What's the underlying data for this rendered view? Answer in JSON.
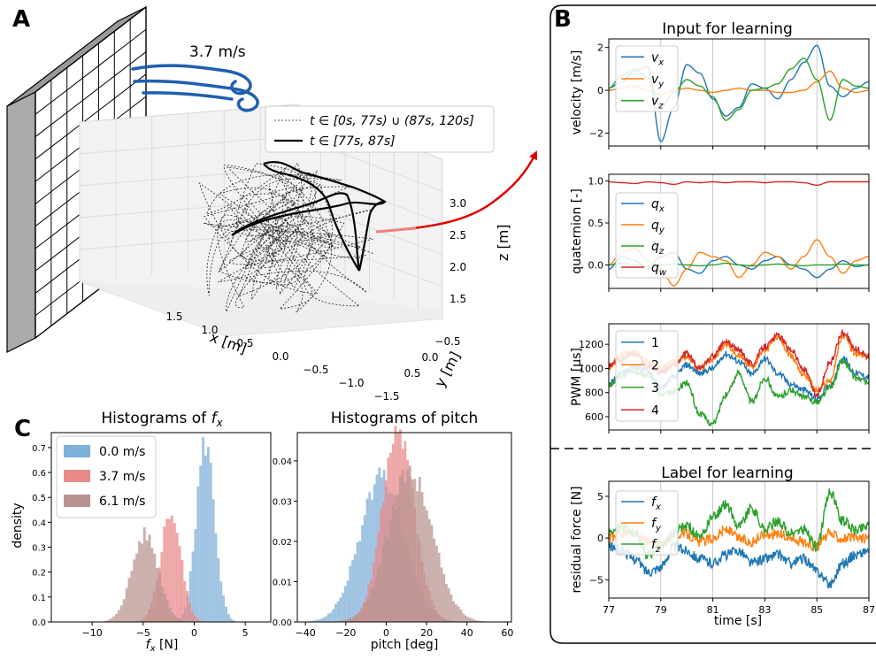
{
  "panel_letters": {
    "a": "A",
    "b": "B",
    "c": "C"
  },
  "wind": {
    "speed_label": "3.7 m/s"
  },
  "colors": {
    "blue": "#1f77b4",
    "orange": "#ff7f0e",
    "green": "#2ca02c",
    "red": "#d62728",
    "wind": "#1f5fb0",
    "hist_blue": "#7fb0d8",
    "hist_red": "#e88a8a",
    "hist_brown": "#b89490"
  },
  "chart_data": [
    {
      "id": "trajectory3d",
      "type": "line",
      "legend": [
        {
          "label": "t ∈ [0s, 77s) ∪ (87s, 120s]",
          "style": "dotted"
        },
        {
          "label": "t ∈ [77s, 87s]",
          "style": "solid"
        }
      ],
      "xlabel": "x [m]",
      "ylabel": "y [m]",
      "zlabel": "z [m]",
      "xticks": [
        "1.5",
        "1.0",
        "0.5",
        "0.0",
        "−0.5",
        "−1.0",
        "−1.5"
      ],
      "yticks": [
        "−0.5",
        "0.0",
        "0.5"
      ],
      "zticks": [
        "3.0",
        "2.5",
        "2.0",
        "1.5"
      ]
    },
    {
      "id": "velocity",
      "type": "line",
      "title": "Input for learning",
      "ylabel": "velocity [m/s]",
      "ylim": [
        -2.6,
        2.4
      ],
      "yticks": [
        "2",
        "0",
        "−2"
      ],
      "x": [
        77,
        77.5,
        78,
        78.5,
        79,
        79.5,
        80,
        80.5,
        81,
        81.5,
        82,
        82.5,
        83,
        83.5,
        84,
        84.5,
        85,
        85.5,
        86,
        86.5,
        87
      ],
      "series": [
        {
          "name": "v",
          "sub": "x",
          "values": [
            0.1,
            0.4,
            0.9,
            1.1,
            -2.4,
            -0.8,
            1.2,
            0.8,
            -0.4,
            -1.2,
            -0.8,
            0.3,
            0.1,
            -0.4,
            0.5,
            1.3,
            2.1,
            0.2,
            -0.3,
            0.1,
            0.4
          ]
        },
        {
          "name": "v",
          "sub": "y",
          "values": [
            0.0,
            0.1,
            0.2,
            0.0,
            -0.2,
            0.0,
            0.1,
            0.0,
            -0.1,
            0.0,
            0.1,
            0.0,
            0.0,
            -0.1,
            -0.1,
            0.0,
            0.4,
            0.9,
            0.1,
            -0.1,
            0.0
          ]
        },
        {
          "name": "v",
          "sub": "z",
          "values": [
            0.1,
            0.7,
            1.0,
            0.6,
            -0.8,
            -0.1,
            0.5,
            0.2,
            -0.3,
            -1.4,
            -0.9,
            0.0,
            0.1,
            0.3,
            1.0,
            1.5,
            0.5,
            -1.4,
            0.5,
            0.2,
            0.1
          ]
        }
      ]
    },
    {
      "id": "quaternion",
      "type": "line",
      "ylabel": "quaternion [-]",
      "ylim": [
        -0.28,
        1.08
      ],
      "yticks": [
        "1.0",
        "0.5",
        "0.0"
      ],
      "x": [
        77,
        77.5,
        78,
        78.5,
        79,
        79.5,
        80,
        80.5,
        81,
        81.5,
        82,
        82.5,
        83,
        83.5,
        84,
        84.5,
        85,
        85.5,
        86,
        86.5,
        87
      ],
      "series": [
        {
          "name": "q",
          "sub": "x",
          "values": [
            -0.05,
            0.1,
            0.05,
            -0.05,
            0.1,
            0.15,
            -0.05,
            -0.1,
            0.05,
            0.1,
            0.0,
            -0.05,
            0.05,
            0.1,
            0.0,
            -0.05,
            -0.15,
            -0.05,
            0.05,
            -0.02,
            0.0
          ]
        },
        {
          "name": "q",
          "sub": "y",
          "values": [
            0.0,
            0.15,
            0.2,
            0.05,
            -0.05,
            -0.25,
            -0.05,
            0.15,
            0.1,
            0.05,
            -0.15,
            0.0,
            0.15,
            0.1,
            -0.05,
            0.1,
            0.3,
            0.1,
            -0.1,
            0.05,
            0.1
          ]
        },
        {
          "name": "q",
          "sub": "z",
          "values": [
            0.0,
            0.02,
            0.0,
            -0.02,
            0.0,
            0.01,
            0.0,
            -0.01,
            0.0,
            0.02,
            0.0,
            -0.01,
            0.0,
            0.01,
            0.0,
            -0.01,
            0.0,
            0.0,
            0.01,
            0.0,
            0.0
          ]
        },
        {
          "name": "q",
          "sub": "w",
          "values": [
            0.99,
            0.98,
            0.97,
            0.99,
            0.98,
            0.96,
            0.99,
            0.98,
            0.99,
            0.98,
            0.99,
            0.99,
            0.98,
            0.99,
            0.99,
            0.98,
            0.95,
            0.99,
            0.99,
            0.99,
            0.99
          ]
        }
      ]
    },
    {
      "id": "pwm",
      "type": "line",
      "ylabel": "PWM [μs]",
      "ylim": [
        490,
        1370
      ],
      "yticks": [
        "1200",
        "1000",
        "800",
        "600"
      ],
      "x": [
        77,
        77.5,
        78,
        78.5,
        79,
        79.5,
        80,
        80.5,
        81,
        81.5,
        82,
        82.5,
        83,
        83.5,
        84,
        84.5,
        85,
        85.5,
        86,
        86.5,
        87
      ],
      "series": [
        {
          "name": "1",
          "values": [
            880,
            960,
            1020,
            980,
            840,
            930,
            1030,
            960,
            1000,
            1120,
            1060,
            950,
            1080,
            960,
            870,
            820,
            750,
            860,
            1080,
            960,
            930
          ]
        },
        {
          "name": "2",
          "values": [
            1000,
            1120,
            1130,
            1050,
            1000,
            1060,
            1100,
            1000,
            1080,
            1200,
            1100,
            1020,
            1150,
            1260,
            1100,
            950,
            820,
            900,
            1270,
            1120,
            1090
          ]
        },
        {
          "name": "3",
          "values": [
            870,
            940,
            980,
            940,
            780,
            800,
            880,
            620,
            540,
            780,
            960,
            720,
            920,
            760,
            820,
            760,
            720,
            840,
            1060,
            920,
            880
          ]
        },
        {
          "name": "4",
          "values": [
            1020,
            1080,
            1120,
            1020,
            970,
            1030,
            1120,
            1000,
            1100,
            1220,
            1150,
            1040,
            1180,
            1270,
            1160,
            990,
            780,
            1050,
            1300,
            1160,
            1100
          ]
        }
      ]
    },
    {
      "id": "residual",
      "type": "line",
      "title": "Label for learning",
      "ylabel": "residual force [N]",
      "xlabel": "time [s]",
      "ylim": [
        -7.2,
        6.8
      ],
      "yticks": [
        "5",
        "0",
        "−5"
      ],
      "xticks": [
        "77",
        "79",
        "81",
        "83",
        "85",
        "87"
      ],
      "x": [
        77,
        77.5,
        78,
        78.5,
        79,
        79.5,
        80,
        80.5,
        81,
        81.5,
        82,
        82.5,
        83,
        83.5,
        84,
        84.5,
        85,
        85.5,
        86,
        86.5,
        87
      ],
      "series": [
        {
          "name": "f",
          "sub": "x",
          "values": [
            -1.0,
            -1.5,
            -2.5,
            -4.0,
            -3.5,
            -1.0,
            -1.5,
            -2.5,
            -3.0,
            -2.0,
            -1.5,
            -3.0,
            -2.5,
            -2.0,
            -3.0,
            -2.5,
            -4.0,
            -5.5,
            -3.0,
            -2.0,
            -1.5
          ]
        },
        {
          "name": "f",
          "sub": "y",
          "values": [
            0.0,
            0.5,
            0.5,
            -0.5,
            -1.0,
            0.5,
            0.5,
            -0.5,
            0.0,
            1.0,
            0.0,
            -0.5,
            0.5,
            0.5,
            0.0,
            -0.5,
            -1.0,
            0.5,
            0.0,
            0.0,
            0.0
          ]
        },
        {
          "name": "f",
          "sub": "z",
          "values": [
            0.5,
            1.5,
            0.5,
            -2.0,
            -1.0,
            0.5,
            1.5,
            0.0,
            2.5,
            4.0,
            1.5,
            3.5,
            1.0,
            2.0,
            0.5,
            1.0,
            -1.0,
            5.5,
            2.0,
            1.0,
            1.5
          ]
        }
      ]
    },
    {
      "id": "hist_fx",
      "type": "bar",
      "title": "Histograms of f_x",
      "xlabel": "f_x [N]",
      "ylabel": "density",
      "xlim": [
        -14,
        7.5
      ],
      "ylim": [
        0,
        0.76
      ],
      "xticks": [
        -10,
        -5,
        0,
        5
      ],
      "yticks": [
        0.0,
        0.1,
        0.2,
        0.3,
        0.4,
        0.5,
        0.6,
        0.7
      ],
      "series": [
        {
          "name": "0.0 m/s",
          "mean": 1.1,
          "std": 0.9,
          "peak": 0.72
        },
        {
          "name": "3.7 m/s",
          "mean": -2.3,
          "std": 1.0,
          "peak": 0.44
        },
        {
          "name": "6.1 m/s",
          "mean": -4.8,
          "std": 1.3,
          "peak": 0.35
        }
      ]
    },
    {
      "id": "hist_pitch",
      "type": "bar",
      "title": "Histograms of pitch",
      "xlabel": "pitch [deg]",
      "xlim": [
        -44,
        62
      ],
      "ylim": [
        0,
        0.047
      ],
      "xticks": [
        -40,
        -20,
        0,
        20,
        40,
        60
      ],
      "yticks": [
        0.0,
        0.01,
        0.02,
        0.03,
        0.04
      ],
      "series": [
        {
          "name": "0.0 m/s",
          "mean": -2.0,
          "std": 11.0,
          "peak": 0.036
        },
        {
          "name": "3.7 m/s",
          "mean": 6.0,
          "std": 8.0,
          "peak": 0.046
        },
        {
          "name": "6.1 m/s",
          "mean": 12.0,
          "std": 11.0,
          "peak": 0.037
        }
      ]
    }
  ]
}
